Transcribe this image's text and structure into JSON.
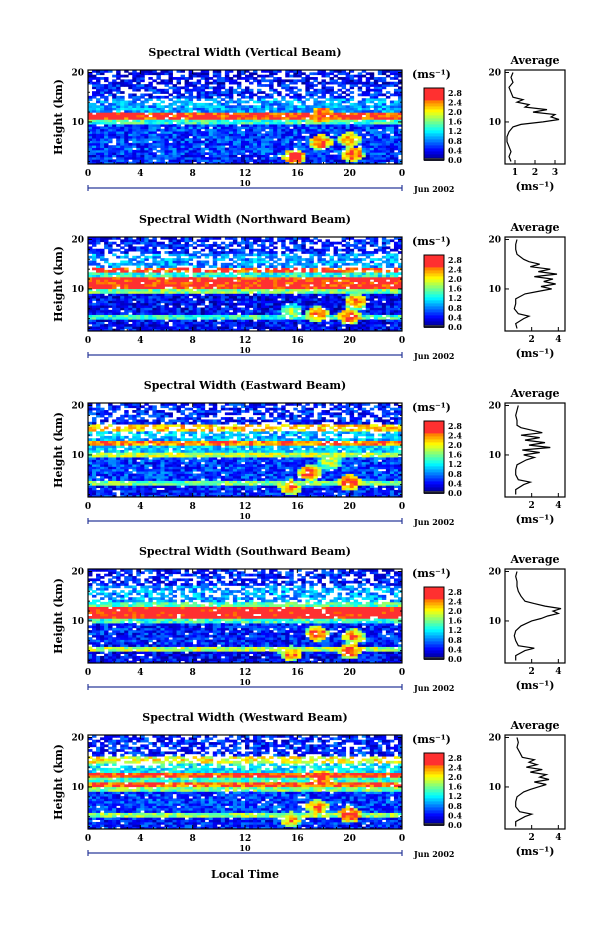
{
  "figure": {
    "xlabel": "Local Time",
    "date_label": "Jun 2002",
    "day_label": "10",
    "ylabel": "Height (km)",
    "unit_label": "(ms⁻¹)",
    "average_title": "Average"
  },
  "chart_data": [
    {
      "type": "heatmap",
      "title": "Spectral Width (Vertical Beam)",
      "xlabel": "Local Time",
      "ylabel": "Height (km)",
      "x_ticks": [
        "0",
        "4",
        "8",
        "12",
        "16",
        "20",
        "0"
      ],
      "xlim": [
        0,
        24
      ],
      "y_ticks": [
        "10",
        "20"
      ],
      "ylim": [
        1.5,
        20.5
      ],
      "colorbar": {
        "label": "(ms⁻¹)",
        "ticks": [
          "2.8",
          "2.4",
          "2.0",
          "1.6",
          "1.2",
          "0.8",
          "0.4",
          "0.0"
        ],
        "range": [
          0.0,
          3.0
        ]
      },
      "layers": [
        {
          "from": 1.5,
          "to": 3.5,
          "level": 0.5
        },
        {
          "from": 3.5,
          "to": 9.5,
          "level": 0.6
        },
        {
          "from": 9.5,
          "to": 10.5,
          "level": 1.4
        },
        {
          "from": 10.5,
          "to": 11.8,
          "level": 2.6
        },
        {
          "from": 11.8,
          "to": 15.0,
          "level": 0.9
        },
        {
          "from": 15.0,
          "to": 17.5,
          "level": 0.5
        },
        {
          "from": 17.5,
          "to": 20.5,
          "level": 0.4
        }
      ],
      "hotspots": [
        {
          "x": 15.8,
          "y": 3.0,
          "level": 2.8
        },
        {
          "x": 17.8,
          "y": 6.0,
          "level": 2.6
        },
        {
          "x": 17.9,
          "y": 11.5,
          "level": 2.8
        },
        {
          "x": 20.2,
          "y": 3.5,
          "level": 2.7
        },
        {
          "x": 20.0,
          "y": 6.5,
          "level": 2.4
        }
      ],
      "average": {
        "xlabel": "(ms⁻¹)",
        "x_ticks": [
          "1",
          "2",
          "3"
        ],
        "xlim": [
          0.5,
          3.5
        ],
        "y_ticks": [
          "10",
          "20"
        ],
        "ylim": [
          1.5,
          20.5
        ],
        "height": [
          2,
          3,
          4,
          5,
          6,
          7,
          8,
          9,
          9.5,
          10,
          10.5,
          11,
          11.5,
          12,
          12.5,
          13,
          13.5,
          14,
          14.5,
          15,
          16,
          17,
          18,
          19,
          20
        ],
        "value": [
          0.8,
          0.7,
          0.8,
          0.7,
          0.6,
          0.6,
          0.7,
          0.9,
          1.3,
          2.4,
          3.2,
          2.8,
          3.0,
          1.9,
          2.6,
          1.5,
          1.7,
          1.1,
          1.4,
          0.9,
          0.8,
          0.7,
          0.9,
          0.8,
          0.9
        ]
      }
    },
    {
      "type": "heatmap",
      "title": "Spectral Width (Northward Beam)",
      "xlabel": "Local Time",
      "ylabel": "Height (km)",
      "x_ticks": [
        "0",
        "4",
        "8",
        "12",
        "16",
        "20",
        "0"
      ],
      "xlim": [
        0,
        24
      ],
      "y_ticks": [
        "10",
        "20"
      ],
      "ylim": [
        1.5,
        20.5
      ],
      "colorbar": {
        "label": "(ms⁻¹)",
        "ticks": [
          "2.8",
          "2.4",
          "2.0",
          "1.6",
          "1.2",
          "0.8",
          "0.4",
          "0.0"
        ],
        "range": [
          0.0,
          3.0
        ]
      },
      "layers": [
        {
          "from": 1.5,
          "to": 4.0,
          "level": 0.4
        },
        {
          "from": 4.0,
          "to": 4.8,
          "level": 1.4
        },
        {
          "from": 4.8,
          "to": 9.0,
          "level": 0.4
        },
        {
          "from": 9.0,
          "to": 10.0,
          "level": 1.6
        },
        {
          "from": 10.0,
          "to": 12.5,
          "level": 2.7
        },
        {
          "from": 12.5,
          "to": 13.5,
          "level": 1.3
        },
        {
          "from": 13.5,
          "to": 14.5,
          "level": 2.6
        },
        {
          "from": 14.5,
          "to": 17.0,
          "level": 0.9
        },
        {
          "from": 17.0,
          "to": 20.5,
          "level": 0.5
        }
      ],
      "hotspots": [
        {
          "x": 15.5,
          "y": 5.5,
          "level": 1.8
        },
        {
          "x": 17.5,
          "y": 5.0,
          "level": 2.6
        },
        {
          "x": 20.0,
          "y": 4.5,
          "level": 2.7
        },
        {
          "x": 20.5,
          "y": 7.5,
          "level": 2.5
        }
      ],
      "average": {
        "xlabel": "(ms⁻¹)",
        "x_ticks": [
          "2",
          "4"
        ],
        "xlim": [
          0,
          4.5
        ],
        "y_ticks": [
          "10",
          "20"
        ],
        "ylim": [
          1.5,
          20.5
        ],
        "height": [
          2,
          3,
          4,
          4.5,
          5,
          6,
          7,
          8,
          9,
          9.5,
          10,
          10.5,
          11,
          11.5,
          12,
          12.5,
          13,
          13.5,
          14,
          14.5,
          15,
          15.5,
          16,
          17,
          18,
          19,
          20
        ],
        "value": [
          0.9,
          0.8,
          1.4,
          1.8,
          1.0,
          0.7,
          0.8,
          0.8,
          1.5,
          2.5,
          3.5,
          2.7,
          3.8,
          2.9,
          3.6,
          2.2,
          3.9,
          2.5,
          3.4,
          1.9,
          2.6,
          1.8,
          1.4,
          0.9,
          0.8,
          0.8,
          0.9
        ]
      }
    },
    {
      "type": "heatmap",
      "title": "Spectral Width (Eastward Beam)",
      "xlabel": "Local Time",
      "ylabel": "Height (km)",
      "x_ticks": [
        "0",
        "4",
        "8",
        "12",
        "16",
        "20",
        "0"
      ],
      "xlim": [
        0,
        24
      ],
      "y_ticks": [
        "10",
        "20"
      ],
      "ylim": [
        1.5,
        20.5
      ],
      "colorbar": {
        "label": "(ms⁻¹)",
        "ticks": [
          "2.8",
          "2.4",
          "2.0",
          "1.6",
          "1.2",
          "0.8",
          "0.4",
          "0.0"
        ],
        "range": [
          0.0,
          3.0
        ]
      },
      "layers": [
        {
          "from": 1.5,
          "to": 4.0,
          "level": 0.5
        },
        {
          "from": 4.0,
          "to": 4.8,
          "level": 1.6
        },
        {
          "from": 4.8,
          "to": 9.5,
          "level": 0.6
        },
        {
          "from": 9.5,
          "to": 10.5,
          "level": 1.8
        },
        {
          "from": 10.5,
          "to": 12.0,
          "level": 1.1
        },
        {
          "from": 12.0,
          "to": 13.0,
          "level": 2.4
        },
        {
          "from": 13.0,
          "to": 15.0,
          "level": 1.0
        },
        {
          "from": 15.0,
          "to": 16.0,
          "level": 2.2
        },
        {
          "from": 16.0,
          "to": 20.5,
          "level": 0.5
        }
      ],
      "hotspots": [
        {
          "x": 15.5,
          "y": 3.5,
          "level": 2.4
        },
        {
          "x": 17.0,
          "y": 6.5,
          "level": 2.7
        },
        {
          "x": 20.0,
          "y": 4.5,
          "level": 2.8
        },
        {
          "x": 18.5,
          "y": 8.5,
          "level": 1.9
        }
      ],
      "average": {
        "xlabel": "(ms⁻¹)",
        "x_ticks": [
          "2",
          "4"
        ],
        "xlim": [
          0,
          4.5
        ],
        "y_ticks": [
          "10",
          "20"
        ],
        "ylim": [
          1.5,
          20.5
        ],
        "height": [
          2,
          3,
          4,
          4.5,
          5,
          6,
          7,
          8,
          9,
          9.5,
          10,
          10.5,
          11,
          11.5,
          12,
          12.5,
          13,
          13.5,
          14,
          14.5,
          15,
          15.5,
          16,
          17,
          18,
          19,
          20
        ],
        "value": [
          0.8,
          0.8,
          1.4,
          1.9,
          1.0,
          0.8,
          0.8,
          0.9,
          1.6,
          2.2,
          1.4,
          2.6,
          1.3,
          3.4,
          1.8,
          3.0,
          1.5,
          2.6,
          1.2,
          2.8,
          2.0,
          1.2,
          0.9,
          0.9,
          0.8,
          0.9,
          1.0
        ]
      }
    },
    {
      "type": "heatmap",
      "title": "Spectral Width (Southward Beam)",
      "xlabel": "Local Time",
      "ylabel": "Height (km)",
      "x_ticks": [
        "0",
        "4",
        "8",
        "12",
        "16",
        "20",
        "0"
      ],
      "xlim": [
        0,
        24
      ],
      "y_ticks": [
        "10",
        "20"
      ],
      "ylim": [
        1.5,
        20.5
      ],
      "colorbar": {
        "label": "(ms⁻¹)",
        "ticks": [
          "2.8",
          "2.4",
          "2.0",
          "1.6",
          "1.2",
          "0.8",
          "0.4",
          "0.0"
        ],
        "range": [
          0.0,
          3.0
        ]
      },
      "layers": [
        {
          "from": 1.5,
          "to": 4.0,
          "level": 0.4
        },
        {
          "from": 4.0,
          "to": 4.8,
          "level": 1.8
        },
        {
          "from": 4.8,
          "to": 9.5,
          "level": 0.5
        },
        {
          "from": 9.5,
          "to": 10.5,
          "level": 1.4
        },
        {
          "from": 10.5,
          "to": 13.0,
          "level": 2.8
        },
        {
          "from": 13.0,
          "to": 14.0,
          "level": 1.5
        },
        {
          "from": 14.0,
          "to": 17.0,
          "level": 0.9
        },
        {
          "from": 17.0,
          "to": 20.5,
          "level": 0.5
        }
      ],
      "hotspots": [
        {
          "x": 15.5,
          "y": 3.5,
          "level": 2.4
        },
        {
          "x": 17.5,
          "y": 7.5,
          "level": 2.7
        },
        {
          "x": 20.0,
          "y": 4.0,
          "level": 2.7
        },
        {
          "x": 20.3,
          "y": 7.0,
          "level": 2.4
        }
      ],
      "average": {
        "xlabel": "(ms⁻¹)",
        "x_ticks": [
          "2",
          "4"
        ],
        "xlim": [
          0,
          4.5
        ],
        "y_ticks": [
          "10",
          "20"
        ],
        "ylim": [
          1.5,
          20.5
        ],
        "height": [
          2,
          3,
          4,
          4.5,
          5,
          6,
          7,
          8,
          9,
          9.5,
          10,
          10.5,
          11,
          11.5,
          12,
          12.5,
          13,
          13.5,
          14,
          15,
          16,
          17,
          18,
          19,
          20
        ],
        "value": [
          0.8,
          0.8,
          1.5,
          2.2,
          1.0,
          0.8,
          0.7,
          0.8,
          1.2,
          1.6,
          2.0,
          2.7,
          3.2,
          4.0,
          3.6,
          4.2,
          3.0,
          2.2,
          1.5,
          1.2,
          1.0,
          0.9,
          0.9,
          0.8,
          0.9
        ]
      }
    },
    {
      "type": "heatmap",
      "title": "Spectral Width (Westward Beam)",
      "xlabel": "Local Time",
      "ylabel": "Height (km)",
      "x_ticks": [
        "0",
        "4",
        "8",
        "12",
        "16",
        "20",
        "0"
      ],
      "xlim": [
        0,
        24
      ],
      "y_ticks": [
        "10",
        "20"
      ],
      "ylim": [
        1.5,
        20.5
      ],
      "colorbar": {
        "label": "(ms⁻¹)",
        "ticks": [
          "2.8",
          "2.4",
          "2.0",
          "1.6",
          "1.2",
          "0.8",
          "0.4",
          "0.0"
        ],
        "range": [
          0.0,
          3.0
        ]
      },
      "layers": [
        {
          "from": 1.5,
          "to": 4.0,
          "level": 0.5
        },
        {
          "from": 4.0,
          "to": 5.0,
          "level": 1.7
        },
        {
          "from": 5.0,
          "to": 9.0,
          "level": 0.6
        },
        {
          "from": 9.0,
          "to": 10.0,
          "level": 1.6
        },
        {
          "from": 10.0,
          "to": 11.0,
          "level": 2.5
        },
        {
          "from": 11.0,
          "to": 12.0,
          "level": 1.4
        },
        {
          "from": 12.0,
          "to": 13.0,
          "level": 2.6
        },
        {
          "from": 13.0,
          "to": 15.0,
          "level": 1.2
        },
        {
          "from": 15.0,
          "to": 16.0,
          "level": 2.0
        },
        {
          "from": 16.0,
          "to": 20.5,
          "level": 0.5
        }
      ],
      "hotspots": [
        {
          "x": 15.5,
          "y": 3.5,
          "level": 2.3
        },
        {
          "x": 17.8,
          "y": 12.0,
          "level": 2.8
        },
        {
          "x": 17.5,
          "y": 6.0,
          "level": 2.5
        },
        {
          "x": 20.0,
          "y": 4.5,
          "level": 2.8
        }
      ],
      "average": {
        "xlabel": "(ms⁻¹)",
        "x_ticks": [
          "2",
          "4"
        ],
        "xlim": [
          0,
          4.5
        ],
        "y_ticks": [
          "10",
          "20"
        ],
        "ylim": [
          1.5,
          20.5
        ],
        "height": [
          2,
          3,
          4,
          4.5,
          5,
          6,
          7,
          8,
          9,
          9.5,
          10,
          10.5,
          11,
          11.5,
          12,
          12.5,
          13,
          13.5,
          14,
          14.5,
          15,
          15.5,
          16,
          17,
          18,
          19,
          20
        ],
        "value": [
          0.8,
          0.8,
          1.5,
          2.0,
          1.1,
          0.8,
          0.8,
          0.9,
          1.4,
          1.9,
          2.5,
          3.1,
          2.2,
          3.3,
          2.6,
          3.1,
          1.9,
          2.8,
          1.6,
          2.4,
          1.8,
          2.2,
          1.3,
          1.1,
          0.9,
          1.0,
          0.9
        ]
      }
    }
  ]
}
